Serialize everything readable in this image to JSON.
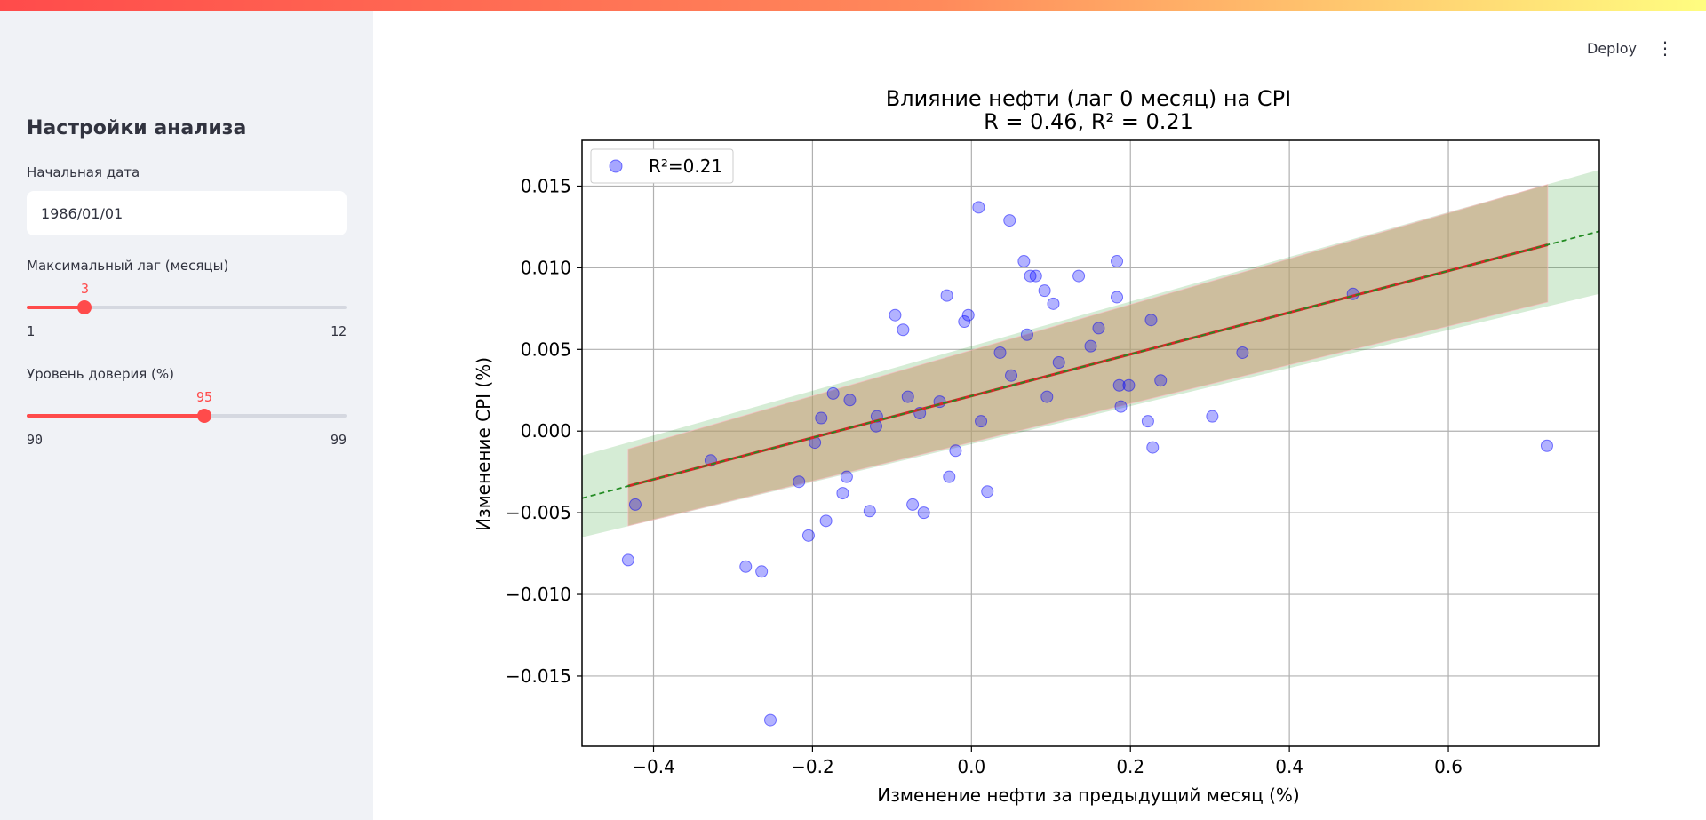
{
  "sidebar": {
    "title": "Настройки анализа",
    "start_date": {
      "label": "Начальная дата",
      "value": "1986/01/01"
    },
    "max_lag": {
      "label": "Максимальный лаг (месяцы)",
      "value": 3,
      "min": 1,
      "max": 12,
      "value_text": "3",
      "min_text": "1",
      "max_text": "12"
    },
    "confidence": {
      "label": "Уровень доверия (%)",
      "value": 95,
      "min": 90,
      "max": 99,
      "value_text": "95",
      "min_text": "90",
      "max_text": "99"
    }
  },
  "header": {
    "deploy_label": "Deploy",
    "menu_icon": "kebab-menu-icon"
  },
  "colors": {
    "accent": "#ff4b4b",
    "points": "#0000ff",
    "fit_line": "#d62728",
    "dashed_line": "#228b22",
    "ci_band": "#c8a07a",
    "extended_band": "#2ca02c"
  },
  "chart_data": {
    "type": "scatter",
    "title_line1": "Влияние нефти (лаг 0 месяц) на CPI",
    "title_line2": "R = 0.46, R² = 0.21",
    "xlabel": "Изменение нефти за предыдущий месяц (%)",
    "ylabel": "Изменение CPI (%)",
    "xlim": [
      -0.49,
      0.79
    ],
    "ylim": [
      -0.0193,
      0.0178
    ],
    "xticks": [
      -0.4,
      -0.2,
      0.0,
      0.2,
      0.4,
      0.6
    ],
    "xtick_labels": [
      "−0.4",
      "−0.2",
      "0.0",
      "0.2",
      "0.4",
      "0.6"
    ],
    "yticks": [
      -0.015,
      -0.01,
      -0.005,
      0.0,
      0.005,
      0.01,
      0.015
    ],
    "ytick_labels": [
      "−0.015",
      "−0.010",
      "−0.005",
      "0.000",
      "0.005",
      "0.010",
      "0.015"
    ],
    "grid": true,
    "legend": {
      "position": "top-left",
      "label": "R²=0.21"
    },
    "fit_line": {
      "slope": 0.01277,
      "intercept": 0.00215,
      "x_range": [
        -0.432,
        0.725
      ]
    },
    "conf_band": {
      "x_range": [
        -0.432,
        0.725
      ],
      "upper": [
        -0.0011,
        0.0151
      ],
      "lower": [
        -0.0058,
        0.0079
      ]
    },
    "extended_band": {
      "x_range": [
        -0.49,
        0.79
      ],
      "upper": [
        -0.0015,
        0.016
      ],
      "lower": [
        -0.0065,
        0.0084
      ]
    },
    "scatter_points": [
      [
        -0.432,
        -0.0079
      ],
      [
        -0.423,
        -0.0045
      ],
      [
        -0.328,
        -0.0018
      ],
      [
        -0.284,
        -0.0083
      ],
      [
        -0.264,
        -0.0086
      ],
      [
        -0.253,
        -0.0177
      ],
      [
        -0.217,
        -0.0031
      ],
      [
        -0.205,
        -0.0064
      ],
      [
        -0.197,
        -0.0007
      ],
      [
        -0.189,
        0.0008
      ],
      [
        -0.183,
        -0.0055
      ],
      [
        -0.174,
        0.0023
      ],
      [
        -0.162,
        -0.0038
      ],
      [
        -0.157,
        -0.0028
      ],
      [
        -0.153,
        0.0019
      ],
      [
        -0.128,
        -0.0049
      ],
      [
        -0.119,
        0.0009
      ],
      [
        -0.096,
        0.0071
      ],
      [
        -0.086,
        0.0062
      ],
      [
        -0.074,
        -0.0045
      ],
      [
        -0.065,
        0.0011
      ],
      [
        -0.06,
        -0.005
      ],
      [
        -0.031,
        0.0083
      ],
      [
        -0.028,
        -0.0028
      ],
      [
        -0.009,
        0.0067
      ],
      [
        -0.004,
        0.0071
      ],
      [
        0.009,
        0.0137
      ],
      [
        0.02,
        -0.0037
      ],
      [
        0.036,
        0.0048
      ],
      [
        0.048,
        0.0129
      ],
      [
        0.066,
        0.0104
      ],
      [
        0.074,
        0.0095
      ],
      [
        0.081,
        0.0095
      ],
      [
        0.092,
        0.0086
      ],
      [
        0.103,
        0.0078
      ],
      [
        0.135,
        0.0095
      ],
      [
        0.183,
        0.0082
      ],
      [
        0.183,
        0.0104
      ],
      [
        0.186,
        0.0028
      ],
      [
        0.188,
        0.0015
      ],
      [
        0.198,
        0.0028
      ],
      [
        0.222,
        0.0006
      ],
      [
        0.226,
        0.0068
      ],
      [
        0.228,
        -0.001
      ],
      [
        0.238,
        0.0031
      ],
      [
        0.303,
        0.0009
      ],
      [
        0.341,
        0.0048
      ],
      [
        0.48,
        0.0084
      ],
      [
        0.724,
        -0.0009
      ],
      [
        -0.04,
        0.0018
      ],
      [
        0.05,
        0.0034
      ],
      [
        0.11,
        0.0042
      ],
      [
        -0.12,
        0.0003
      ],
      [
        0.15,
        0.0052
      ],
      [
        -0.08,
        0.0021
      ],
      [
        0.012,
        0.0006
      ],
      [
        0.07,
        0.0059
      ],
      [
        -0.02,
        -0.0012
      ],
      [
        0.16,
        0.0063
      ],
      [
        0.095,
        0.0021
      ]
    ]
  }
}
